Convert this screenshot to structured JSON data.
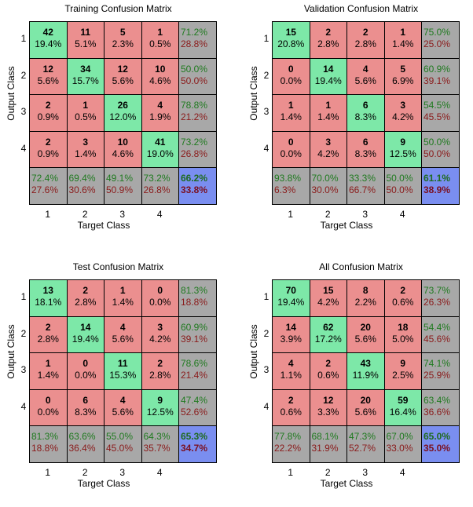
{
  "chart_data": [
    {
      "type": "table",
      "title": "Training Confusion Matrix",
      "xlabel": "Target Class",
      "ylabel": "Output Class",
      "classes": [
        "1",
        "2",
        "3",
        "4"
      ],
      "cells": [
        [
          {
            "n": "42",
            "p": "19.4%"
          },
          {
            "n": "11",
            "p": "5.1%"
          },
          {
            "n": "5",
            "p": "2.3%"
          },
          {
            "n": "1",
            "p": "0.5%"
          }
        ],
        [
          {
            "n": "12",
            "p": "5.6%"
          },
          {
            "n": "34",
            "p": "15.7%"
          },
          {
            "n": "12",
            "p": "5.6%"
          },
          {
            "n": "10",
            "p": "4.6%"
          }
        ],
        [
          {
            "n": "2",
            "p": "0.9%"
          },
          {
            "n": "1",
            "p": "0.5%"
          },
          {
            "n": "26",
            "p": "12.0%"
          },
          {
            "n": "4",
            "p": "1.9%"
          }
        ],
        [
          {
            "n": "2",
            "p": "0.9%"
          },
          {
            "n": "3",
            "p": "1.4%"
          },
          {
            "n": "10",
            "p": "4.6%"
          },
          {
            "n": "41",
            "p": "19.0%"
          }
        ]
      ],
      "row_summary": [
        [
          "71.2%",
          "28.8%"
        ],
        [
          "50.0%",
          "50.0%"
        ],
        [
          "78.8%",
          "21.2%"
        ],
        [
          "73.2%",
          "26.8%"
        ]
      ],
      "col_summary": [
        [
          "72.4%",
          "27.6%"
        ],
        [
          "69.4%",
          "30.6%"
        ],
        [
          "49.1%",
          "50.9%"
        ],
        [
          "73.2%",
          "26.8%"
        ]
      ],
      "overall": [
        "66.2%",
        "33.8%"
      ]
    },
    {
      "type": "table",
      "title": "Validation Confusion Matrix",
      "xlabel": "Target Class",
      "ylabel": "Output Class",
      "classes": [
        "1",
        "2",
        "3",
        "4"
      ],
      "cells": [
        [
          {
            "n": "15",
            "p": "20.8%"
          },
          {
            "n": "2",
            "p": "2.8%"
          },
          {
            "n": "2",
            "p": "2.8%"
          },
          {
            "n": "1",
            "p": "1.4%"
          }
        ],
        [
          {
            "n": "0",
            "p": "0.0%"
          },
          {
            "n": "14",
            "p": "19.4%"
          },
          {
            "n": "4",
            "p": "5.6%"
          },
          {
            "n": "5",
            "p": "6.9%"
          }
        ],
        [
          {
            "n": "1",
            "p": "1.4%"
          },
          {
            "n": "1",
            "p": "1.4%"
          },
          {
            "n": "6",
            "p": "8.3%"
          },
          {
            "n": "3",
            "p": "4.2%"
          }
        ],
        [
          {
            "n": "0",
            "p": "0.0%"
          },
          {
            "n": "3",
            "p": "4.2%"
          },
          {
            "n": "6",
            "p": "8.3%"
          },
          {
            "n": "9",
            "p": "12.5%"
          }
        ]
      ],
      "row_summary": [
        [
          "75.0%",
          "25.0%"
        ],
        [
          "60.9%",
          "39.1%"
        ],
        [
          "54.5%",
          "45.5%"
        ],
        [
          "50.0%",
          "50.0%"
        ]
      ],
      "col_summary": [
        [
          "93.8%",
          "6.3%"
        ],
        [
          "70.0%",
          "30.0%"
        ],
        [
          "33.3%",
          "66.7%"
        ],
        [
          "50.0%",
          "50.0%"
        ]
      ],
      "overall": [
        "61.1%",
        "38.9%"
      ]
    },
    {
      "type": "table",
      "title": "Test Confusion Matrix",
      "xlabel": "Target Class",
      "ylabel": "Output Class",
      "classes": [
        "1",
        "2",
        "3",
        "4"
      ],
      "cells": [
        [
          {
            "n": "13",
            "p": "18.1%"
          },
          {
            "n": "2",
            "p": "2.8%"
          },
          {
            "n": "1",
            "p": "1.4%"
          },
          {
            "n": "0",
            "p": "0.0%"
          }
        ],
        [
          {
            "n": "2",
            "p": "2.8%"
          },
          {
            "n": "14",
            "p": "19.4%"
          },
          {
            "n": "4",
            "p": "5.6%"
          },
          {
            "n": "3",
            "p": "4.2%"
          }
        ],
        [
          {
            "n": "1",
            "p": "1.4%"
          },
          {
            "n": "0",
            "p": "0.0%"
          },
          {
            "n": "11",
            "p": "15.3%"
          },
          {
            "n": "2",
            "p": "2.8%"
          }
        ],
        [
          {
            "n": "0",
            "p": "0.0%"
          },
          {
            "n": "6",
            "p": "8.3%"
          },
          {
            "n": "4",
            "p": "5.6%"
          },
          {
            "n": "9",
            "p": "12.5%"
          }
        ]
      ],
      "row_summary": [
        [
          "81.3%",
          "18.8%"
        ],
        [
          "60.9%",
          "39.1%"
        ],
        [
          "78.6%",
          "21.4%"
        ],
        [
          "47.4%",
          "52.6%"
        ]
      ],
      "col_summary": [
        [
          "81.3%",
          "18.8%"
        ],
        [
          "63.6%",
          "36.4%"
        ],
        [
          "55.0%",
          "45.0%"
        ],
        [
          "64.3%",
          "35.7%"
        ]
      ],
      "overall": [
        "65.3%",
        "34.7%"
      ]
    },
    {
      "type": "table",
      "title": "All Confusion Matrix",
      "xlabel": "Target Class",
      "ylabel": "Output Class",
      "classes": [
        "1",
        "2",
        "3",
        "4"
      ],
      "cells": [
        [
          {
            "n": "70",
            "p": "19.4%"
          },
          {
            "n": "15",
            "p": "4.2%"
          },
          {
            "n": "8",
            "p": "2.2%"
          },
          {
            "n": "2",
            "p": "0.6%"
          }
        ],
        [
          {
            "n": "14",
            "p": "3.9%"
          },
          {
            "n": "62",
            "p": "17.2%"
          },
          {
            "n": "20",
            "p": "5.6%"
          },
          {
            "n": "18",
            "p": "5.0%"
          }
        ],
        [
          {
            "n": "4",
            "p": "1.1%"
          },
          {
            "n": "2",
            "p": "0.6%"
          },
          {
            "n": "43",
            "p": "11.9%"
          },
          {
            "n": "9",
            "p": "2.5%"
          }
        ],
        [
          {
            "n": "2",
            "p": "0.6%"
          },
          {
            "n": "12",
            "p": "3.3%"
          },
          {
            "n": "20",
            "p": "5.6%"
          },
          {
            "n": "59",
            "p": "16.4%"
          }
        ]
      ],
      "row_summary": [
        [
          "73.7%",
          "26.3%"
        ],
        [
          "54.4%",
          "45.6%"
        ],
        [
          "74.1%",
          "25.9%"
        ],
        [
          "63.4%",
          "36.6%"
        ]
      ],
      "col_summary": [
        [
          "77.8%",
          "22.2%"
        ],
        [
          "68.1%",
          "31.9%"
        ],
        [
          "47.3%",
          "52.7%"
        ],
        [
          "67.0%",
          "33.0%"
        ]
      ],
      "overall": [
        "65.0%",
        "35.0%"
      ]
    }
  ]
}
